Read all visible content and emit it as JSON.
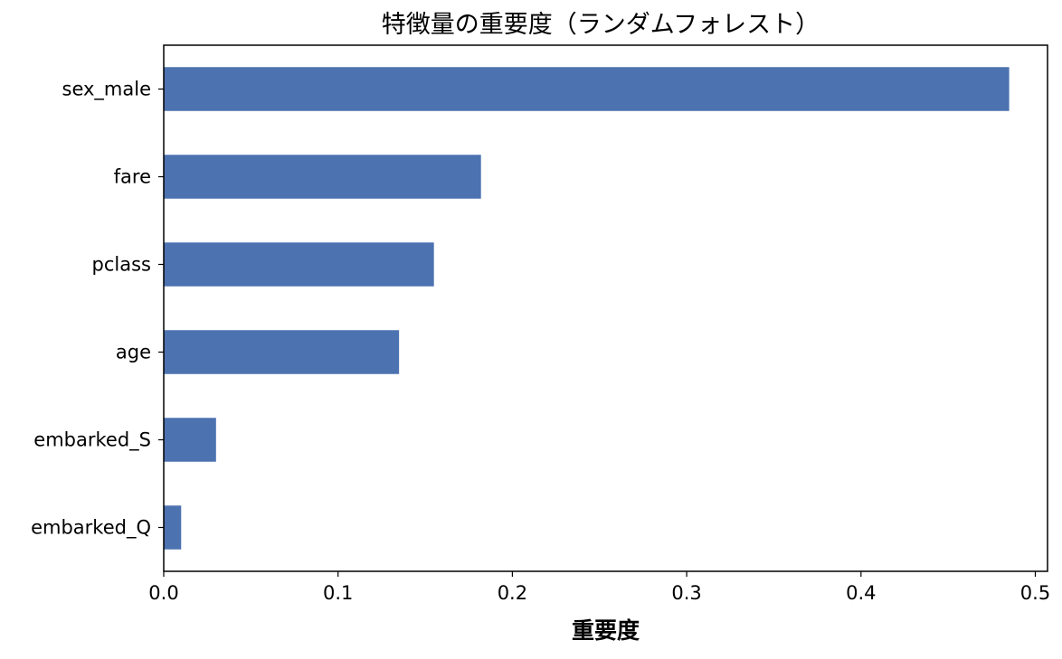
{
  "chart_data": {
    "type": "bar",
    "orientation": "horizontal",
    "title": "特徴量の重要度（ランダムフォレスト）",
    "xlabel": "重要度",
    "ylabel": "",
    "categories": [
      "sex_male",
      "fare",
      "pclass",
      "age",
      "embarked_S",
      "embarked_Q"
    ],
    "values": [
      0.485,
      0.182,
      0.155,
      0.135,
      0.03,
      0.01
    ],
    "xlim": [
      0.0,
      0.507
    ],
    "xticks": [
      0.0,
      0.1,
      0.2,
      0.3,
      0.4,
      0.5
    ],
    "xtick_labels": [
      "0.0",
      "0.1",
      "0.2",
      "0.3",
      "0.4",
      "0.5"
    ],
    "grid": false,
    "bar_color": "#4c72b0"
  }
}
